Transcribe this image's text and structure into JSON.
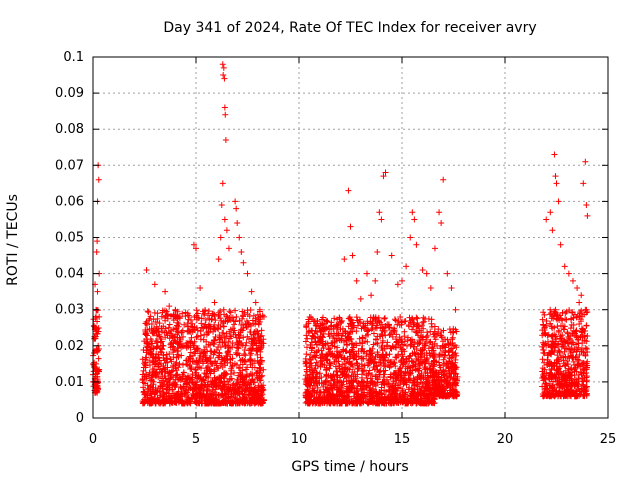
{
  "chart_data": {
    "type": "scatter",
    "title": "Day 341 of 2024, Rate Of TEC Index for receiver avry",
    "xlabel": "GPS time / hours",
    "ylabel": "ROTI / TECUs",
    "xlim": [
      0,
      25
    ],
    "ylim": [
      0,
      0.1
    ],
    "xticks": [
      0,
      5,
      10,
      15,
      20,
      25
    ],
    "xtick_labels": [
      "0",
      "5",
      "10",
      "15",
      "20",
      "25"
    ],
    "yticks": [
      0,
      0.01,
      0.02,
      0.03,
      0.04,
      0.05,
      0.06,
      0.07,
      0.08,
      0.09,
      0.1
    ],
    "ytick_labels": [
      "0",
      "0.01",
      "0.02",
      "0.03",
      "0.04",
      "0.05",
      "0.06",
      "0.07",
      "0.08",
      "0.09",
      "0.1"
    ],
    "grid": true,
    "marker": "+",
    "color": "#ff0000",
    "series": [
      {
        "name": "ROTI",
        "points": [
          [
            0.0,
            0.012
          ],
          [
            0.05,
            0.018
          ],
          [
            0.1,
            0.025
          ],
          [
            0.12,
            0.009
          ],
          [
            0.15,
            0.03
          ],
          [
            0.18,
            0.046
          ],
          [
            0.2,
            0.049
          ],
          [
            0.22,
            0.06
          ],
          [
            0.25,
            0.07
          ],
          [
            0.28,
            0.066
          ],
          [
            0.3,
            0.04
          ],
          [
            0.1,
            0.037
          ],
          [
            0.15,
            0.015
          ],
          [
            0.2,
            0.008
          ],
          [
            0.25,
            0.02
          ],
          [
            0.05,
            0.01
          ],
          [
            0.3,
            0.028
          ],
          [
            0.22,
            0.035
          ],
          [
            0.12,
            0.022
          ],
          [
            0.28,
            0.013
          ],
          [
            2.6,
            0.041
          ],
          [
            3.0,
            0.037
          ],
          [
            3.5,
            0.035
          ],
          [
            3.7,
            0.031
          ],
          [
            4.0,
            0.03
          ],
          [
            4.6,
            0.029
          ],
          [
            4.9,
            0.048
          ],
          [
            5.0,
            0.047
          ],
          [
            5.2,
            0.036
          ],
          [
            5.6,
            0.024
          ],
          [
            5.9,
            0.032
          ],
          [
            6.1,
            0.044
          ],
          [
            6.2,
            0.05
          ],
          [
            6.3,
            0.098
          ],
          [
            6.32,
            0.095
          ],
          [
            6.35,
            0.097
          ],
          [
            6.38,
            0.094
          ],
          [
            6.4,
            0.086
          ],
          [
            6.42,
            0.084
          ],
          [
            6.45,
            0.077
          ],
          [
            6.3,
            0.065
          ],
          [
            6.25,
            0.059
          ],
          [
            6.4,
            0.055
          ],
          [
            6.5,
            0.052
          ],
          [
            6.6,
            0.047
          ],
          [
            6.9,
            0.06
          ],
          [
            6.95,
            0.058
          ],
          [
            7.0,
            0.054
          ],
          [
            7.1,
            0.05
          ],
          [
            7.2,
            0.046
          ],
          [
            7.3,
            0.043
          ],
          [
            7.5,
            0.04
          ],
          [
            7.7,
            0.035
          ],
          [
            7.9,
            0.032
          ],
          [
            8.1,
            0.03
          ],
          [
            8.3,
            0.028
          ],
          [
            10.4,
            0.022
          ],
          [
            10.8,
            0.021
          ],
          [
            11.2,
            0.02
          ],
          [
            11.7,
            0.023
          ],
          [
            12.2,
            0.044
          ],
          [
            12.4,
            0.063
          ],
          [
            12.5,
            0.053
          ],
          [
            12.6,
            0.045
          ],
          [
            12.8,
            0.038
          ],
          [
            13.0,
            0.033
          ],
          [
            13.3,
            0.04
          ],
          [
            13.5,
            0.034
          ],
          [
            13.7,
            0.038
          ],
          [
            13.8,
            0.046
          ],
          [
            13.9,
            0.057
          ],
          [
            14.0,
            0.055
          ],
          [
            14.1,
            0.067
          ],
          [
            14.2,
            0.068
          ],
          [
            14.5,
            0.045
          ],
          [
            14.8,
            0.037
          ],
          [
            15.0,
            0.038
          ],
          [
            15.2,
            0.042
          ],
          [
            15.4,
            0.05
          ],
          [
            15.5,
            0.057
          ],
          [
            15.6,
            0.055
          ],
          [
            15.7,
            0.048
          ],
          [
            16.0,
            0.041
          ],
          [
            16.2,
            0.04
          ],
          [
            16.4,
            0.036
          ],
          [
            16.6,
            0.047
          ],
          [
            16.8,
            0.057
          ],
          [
            16.9,
            0.054
          ],
          [
            17.0,
            0.066
          ],
          [
            17.2,
            0.04
          ],
          [
            17.4,
            0.036
          ],
          [
            17.6,
            0.03
          ],
          [
            22.0,
            0.055
          ],
          [
            22.2,
            0.057
          ],
          [
            22.3,
            0.052
          ],
          [
            22.4,
            0.073
          ],
          [
            22.45,
            0.067
          ],
          [
            22.5,
            0.065
          ],
          [
            22.6,
            0.06
          ],
          [
            22.7,
            0.048
          ],
          [
            22.9,
            0.042
          ],
          [
            23.1,
            0.04
          ],
          [
            23.3,
            0.038
          ],
          [
            23.5,
            0.036
          ],
          [
            23.7,
            0.034
          ],
          [
            23.8,
            0.065
          ],
          [
            23.9,
            0.071
          ],
          [
            23.95,
            0.059
          ],
          [
            24.0,
            0.056
          ],
          [
            23.6,
            0.032
          ],
          [
            23.9,
            0.03
          ]
        ]
      }
    ],
    "dense_clusters": [
      {
        "x_range": [
          0.0,
          0.3
        ],
        "y_range": [
          0.007,
          0.03
        ]
      },
      {
        "x_range": [
          2.4,
          8.3
        ],
        "y_range": [
          0.004,
          0.03
        ]
      },
      {
        "x_range": [
          10.3,
          16.6
        ],
        "y_range": [
          0.004,
          0.028
        ]
      },
      {
        "x_range": [
          16.5,
          17.7
        ],
        "y_range": [
          0.006,
          0.025
        ]
      },
      {
        "x_range": [
          21.8,
          24.0
        ],
        "y_range": [
          0.006,
          0.03
        ]
      }
    ]
  }
}
